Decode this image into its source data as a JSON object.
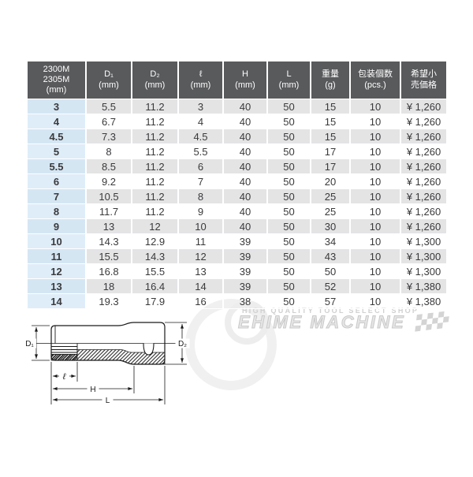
{
  "table": {
    "columns": [
      {
        "lines": [
          "2300M",
          "2305M",
          "(mm)"
        ]
      },
      {
        "lines": [
          "D₁",
          "(mm)"
        ]
      },
      {
        "lines": [
          "D₂",
          "(mm)"
        ]
      },
      {
        "lines": [
          "ℓ",
          "(mm)"
        ]
      },
      {
        "lines": [
          "H",
          "(mm)"
        ]
      },
      {
        "lines": [
          "L",
          "(mm)"
        ]
      },
      {
        "lines": [
          "重量",
          "(g)"
        ]
      },
      {
        "lines": [
          "包装個数",
          "(pcs.)"
        ]
      },
      {
        "lines": [
          "希望小",
          "売価格"
        ]
      }
    ],
    "rows": [
      [
        "3",
        "5.5",
        "11.2",
        "3",
        "40",
        "50",
        "15",
        "10",
        "¥ 1,260"
      ],
      [
        "4",
        "6.7",
        "11.2",
        "4",
        "40",
        "50",
        "15",
        "10",
        "¥ 1,260"
      ],
      [
        "4.5",
        "7.3",
        "11.2",
        "4.5",
        "40",
        "50",
        "15",
        "10",
        "¥ 1,260"
      ],
      [
        "5",
        "8",
        "11.2",
        "5.5",
        "40",
        "50",
        "17",
        "10",
        "¥ 1,260"
      ],
      [
        "5.5",
        "8.5",
        "11.2",
        "6",
        "40",
        "50",
        "17",
        "10",
        "¥ 1,260"
      ],
      [
        "6",
        "9.2",
        "11.2",
        "7",
        "40",
        "50",
        "20",
        "10",
        "¥ 1,260"
      ],
      [
        "7",
        "10.5",
        "11.2",
        "8",
        "40",
        "50",
        "25",
        "10",
        "¥ 1,260"
      ],
      [
        "8",
        "11.7",
        "11.2",
        "9",
        "40",
        "50",
        "25",
        "10",
        "¥ 1,260"
      ],
      [
        "9",
        "13",
        "12",
        "10",
        "40",
        "50",
        "30",
        "10",
        "¥ 1,260"
      ],
      [
        "10",
        "14.3",
        "12.9",
        "11",
        "39",
        "50",
        "34",
        "10",
        "¥ 1,300"
      ],
      [
        "11",
        "15.5",
        "14.3",
        "12",
        "39",
        "50",
        "43",
        "10",
        "¥ 1,300"
      ],
      [
        "12",
        "16.8",
        "15.5",
        "13",
        "39",
        "50",
        "50",
        "10",
        "¥ 1,300"
      ],
      [
        "13",
        "18",
        "16.4",
        "14",
        "39",
        "50",
        "52",
        "10",
        "¥ 1,380"
      ],
      [
        "14",
        "19.3",
        "17.9",
        "16",
        "38",
        "50",
        "57",
        "10",
        "¥ 1,380"
      ]
    ]
  },
  "diagram": {
    "labels": {
      "d1": "D₁",
      "d2": "D₂",
      "ell": "ℓ",
      "h": "H",
      "l": "L"
    }
  },
  "watermark": {
    "tagline": "HIGH QUALITY TOOL SELECT SHOP",
    "brand": "EHIME MACHINE"
  },
  "colors": {
    "header_bg": "#595a5c",
    "row_alt": "#e4e4e5",
    "size_col": "#d5e6f3",
    "size_col_light": "#dfedf9",
    "text": "#3a3a3c",
    "watermark_gray": "#d9d9d9"
  }
}
